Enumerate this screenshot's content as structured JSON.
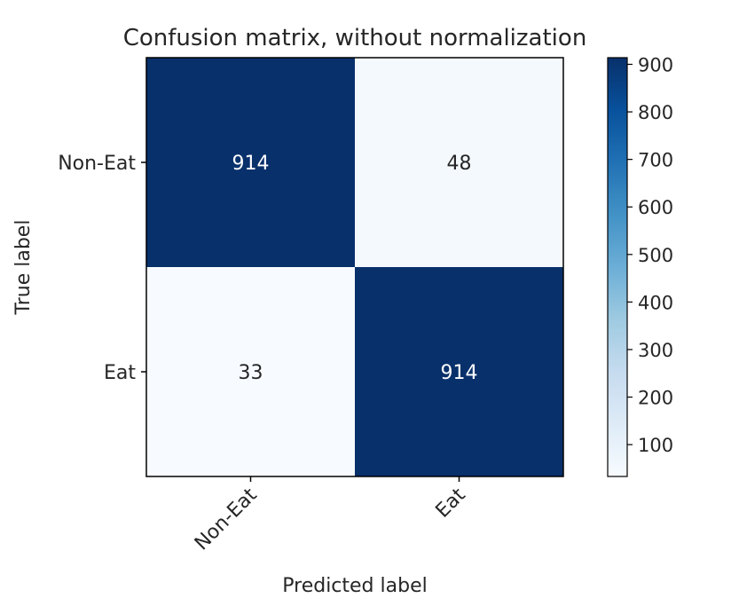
{
  "chart_data": {
    "type": "heatmap",
    "title": "Confusion matrix, without normalization",
    "xlabel": "Predicted label",
    "ylabel": "True label",
    "x_categories": [
      "Non-Eat",
      "Eat"
    ],
    "y_categories": [
      "Non-Eat",
      "Eat"
    ],
    "values": [
      [
        914,
        48
      ],
      [
        33,
        914
      ]
    ],
    "colormap": "Blues",
    "color_low": "#f7fbff",
    "color_high": "#08306b",
    "text_color_dark_cell": "#ffffff",
    "text_color_light_cell": "#262626",
    "colorbar": {
      "range": [
        33,
        914
      ],
      "ticks": [
        100,
        200,
        300,
        400,
        500,
        600,
        700,
        800,
        900
      ],
      "tick_labels": [
        "100",
        "200",
        "300",
        "400",
        "500",
        "600",
        "700",
        "800",
        "900"
      ]
    },
    "grid": false
  }
}
